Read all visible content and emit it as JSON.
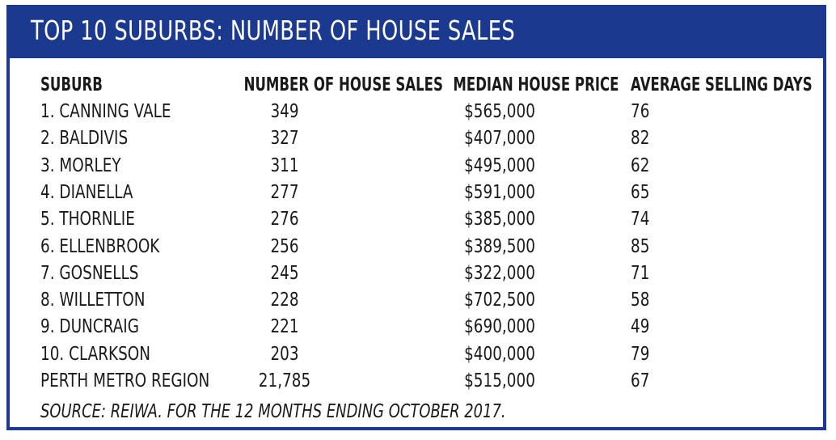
{
  "chart_data": {
    "type": "table",
    "title": "TOP 10 SUBURBS: NUMBER OF HOUSE SALES",
    "columns": [
      "SUBURB",
      "NUMBER OF HOUSE SALES",
      "MEDIAN HOUSE PRICE",
      "AVERAGE SELLING DAYS"
    ],
    "rows": [
      [
        "1. CANNING VALE",
        "349",
        "$565,000",
        "76"
      ],
      [
        "2. BALDIVIS",
        "327",
        "$407,000",
        "82"
      ],
      [
        "3. MORLEY",
        "311",
        "$495,000",
        "62"
      ],
      [
        "4. DIANELLA",
        "277",
        "$591,000",
        "65"
      ],
      [
        "5. THORNLIE",
        "276",
        "$385,000",
        "74"
      ],
      [
        "6. ELLENBROOK",
        "256",
        "$389,500",
        "85"
      ],
      [
        "7. GOSNELLS",
        "245",
        "$322,000",
        "71"
      ],
      [
        "8. WILLETTON",
        "228",
        "$702,500",
        "58"
      ],
      [
        "9. DUNCRAIG",
        "221",
        "$690,000",
        "49"
      ],
      [
        "10. CLARKSON",
        "203",
        "$400,000",
        "79"
      ],
      [
        "PERTH METRO REGION",
        "21,785",
        "$515,000",
        "67"
      ]
    ],
    "source": "SOURCE: REIWA. FOR THE 12 MONTHS ENDING OCTOBER 2017."
  },
  "colors": {
    "accent": "#1b3a8f",
    "text": "#1a1a1a",
    "title_text": "#ffffff"
  }
}
